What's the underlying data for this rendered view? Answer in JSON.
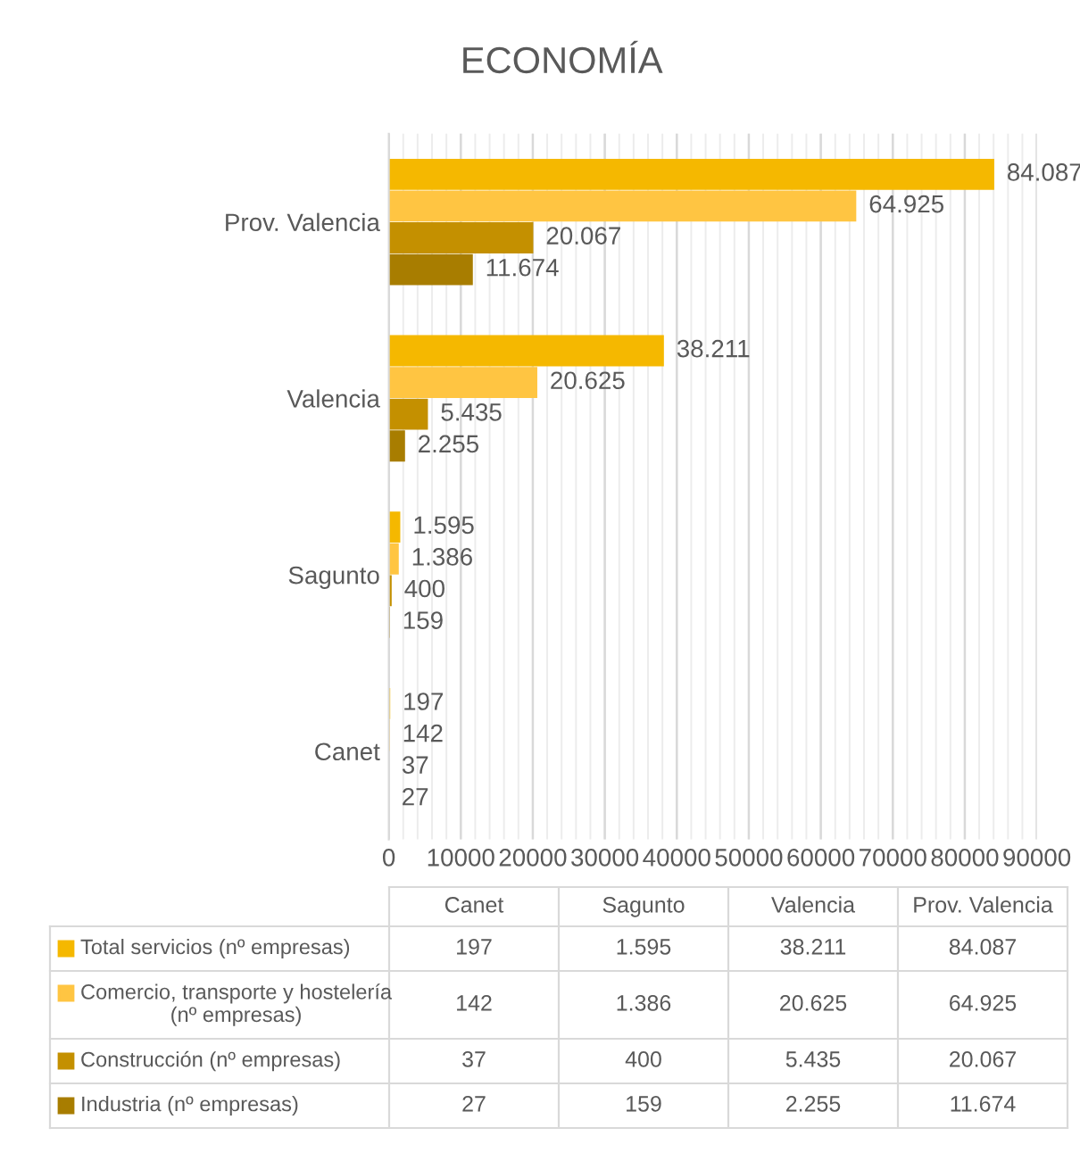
{
  "chart_data": {
    "type": "bar",
    "orientation": "horizontal",
    "title": "ECONOMÍA",
    "categories": [
      "Prov. Valencia",
      "Valencia",
      "Sagunto",
      "Canet"
    ],
    "series": [
      {
        "name": "Total servicios (nº empresas)",
        "color": "#f5b800",
        "values": [
          84087,
          38211,
          1595,
          197
        ],
        "value_labels": [
          "84.087",
          "38.211",
          "1.595",
          "197"
        ]
      },
      {
        "name": "Comercio, transporte y hostelería (nº empresas)",
        "color": "#ffc542",
        "values": [
          64925,
          20625,
          1386,
          142
        ],
        "value_labels": [
          "64.925",
          "20.625",
          "1.386",
          "142"
        ]
      },
      {
        "name": "Construcción (nº empresas)",
        "color": "#c49000",
        "values": [
          20067,
          5435,
          400,
          37
        ],
        "value_labels": [
          "20.067",
          "5.435",
          "400",
          "37"
        ]
      },
      {
        "name": "Industria (nº empresas)",
        "color": "#a87d00",
        "values": [
          11674,
          2255,
          159,
          27
        ],
        "value_labels": [
          "11.674",
          "2.255",
          "159",
          "27"
        ]
      }
    ],
    "xlim": [
      0,
      90000
    ],
    "xticks": [
      0,
      10000,
      20000,
      30000,
      40000,
      50000,
      60000,
      70000,
      80000,
      90000
    ],
    "grid": "x",
    "legend": "bottom"
  }
}
